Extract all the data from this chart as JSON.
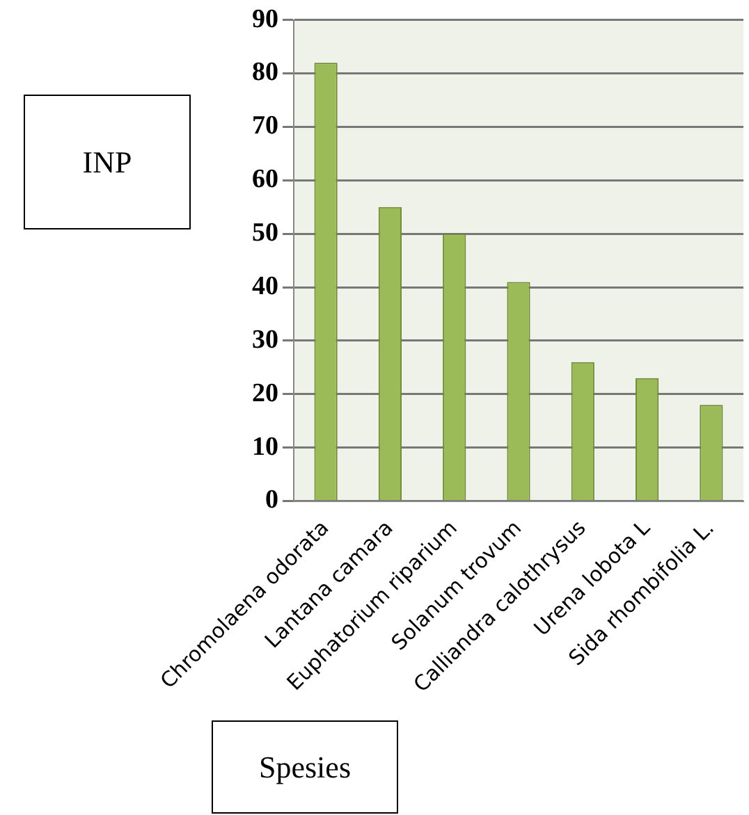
{
  "chart_data": {
    "type": "bar",
    "xlabel": "Spesies",
    "ylabel": "INP",
    "categories": [
      "Chromolaena odorata",
      "Lantana camara",
      "Euphatorium riparium",
      "Solanum trovum",
      "Calliandra calothrysus",
      "Urena lobota L",
      "Sida rhombifolia L."
    ],
    "values": [
      82,
      55,
      50,
      41,
      26,
      23,
      18
    ],
    "color": "#9bbb59",
    "ylim": [
      0,
      90
    ],
    "yticks": [
      0,
      10,
      20,
      30,
      40,
      50,
      60,
      70,
      80,
      90
    ],
    "grid": true
  }
}
